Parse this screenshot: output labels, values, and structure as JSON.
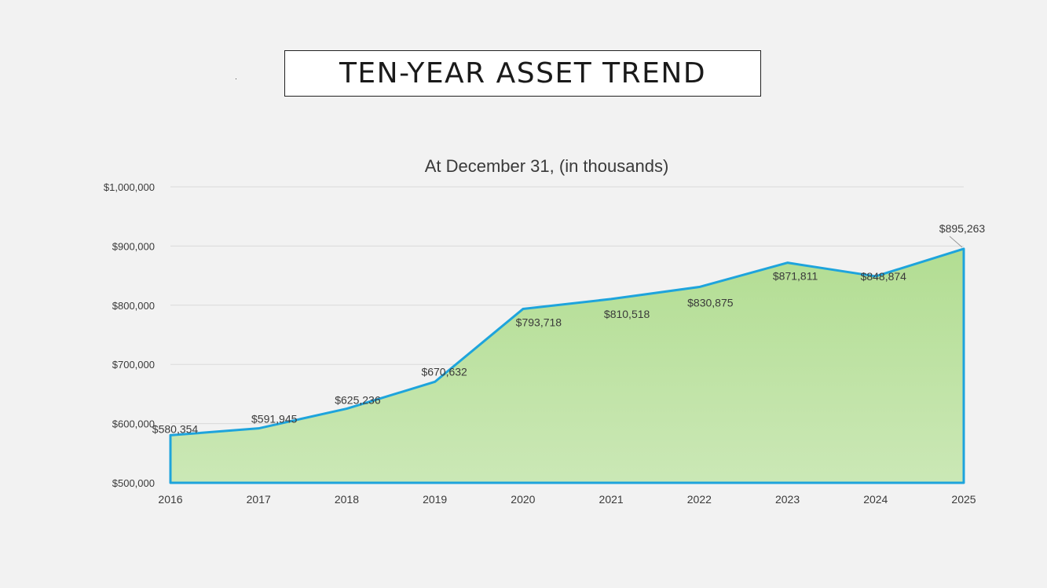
{
  "slide": {
    "title": "TEN-YEAR ASSET TREND"
  },
  "chart_data": {
    "type": "area",
    "title": "At December 31, (in thousands)",
    "xlabel": "",
    "ylabel": "",
    "x": [
      "2016",
      "2017",
      "2018",
      "2019",
      "2020",
      "2021",
      "2022",
      "2023",
      "2024",
      "2025"
    ],
    "series": [
      {
        "values": [
          580354,
          591945,
          625236,
          670632,
          793718,
          810518,
          830875,
          871811,
          848874,
          895263
        ],
        "data_labels": [
          "$580,354",
          "$591,945",
          "$625,236",
          "$670,632",
          "$793,718",
          "$810,518",
          "$830,875",
          "$871,811",
          "$848,874",
          "$895,263"
        ]
      }
    ],
    "ylim": [
      500000,
      1000000
    ],
    "y_ticks": [
      500000,
      600000,
      700000,
      800000,
      900000,
      1000000
    ],
    "y_tick_labels": [
      "$500,000",
      "$600,000",
      "$700,000",
      "$800,000",
      "$900,000",
      "$1,000,000"
    ],
    "grid": true,
    "legend": "none",
    "colors": {
      "line": "#1ea4dc",
      "fill_top": "#b2dd92",
      "fill_bottom": "#cbe8b6",
      "grid": "#d9d9d9"
    }
  }
}
